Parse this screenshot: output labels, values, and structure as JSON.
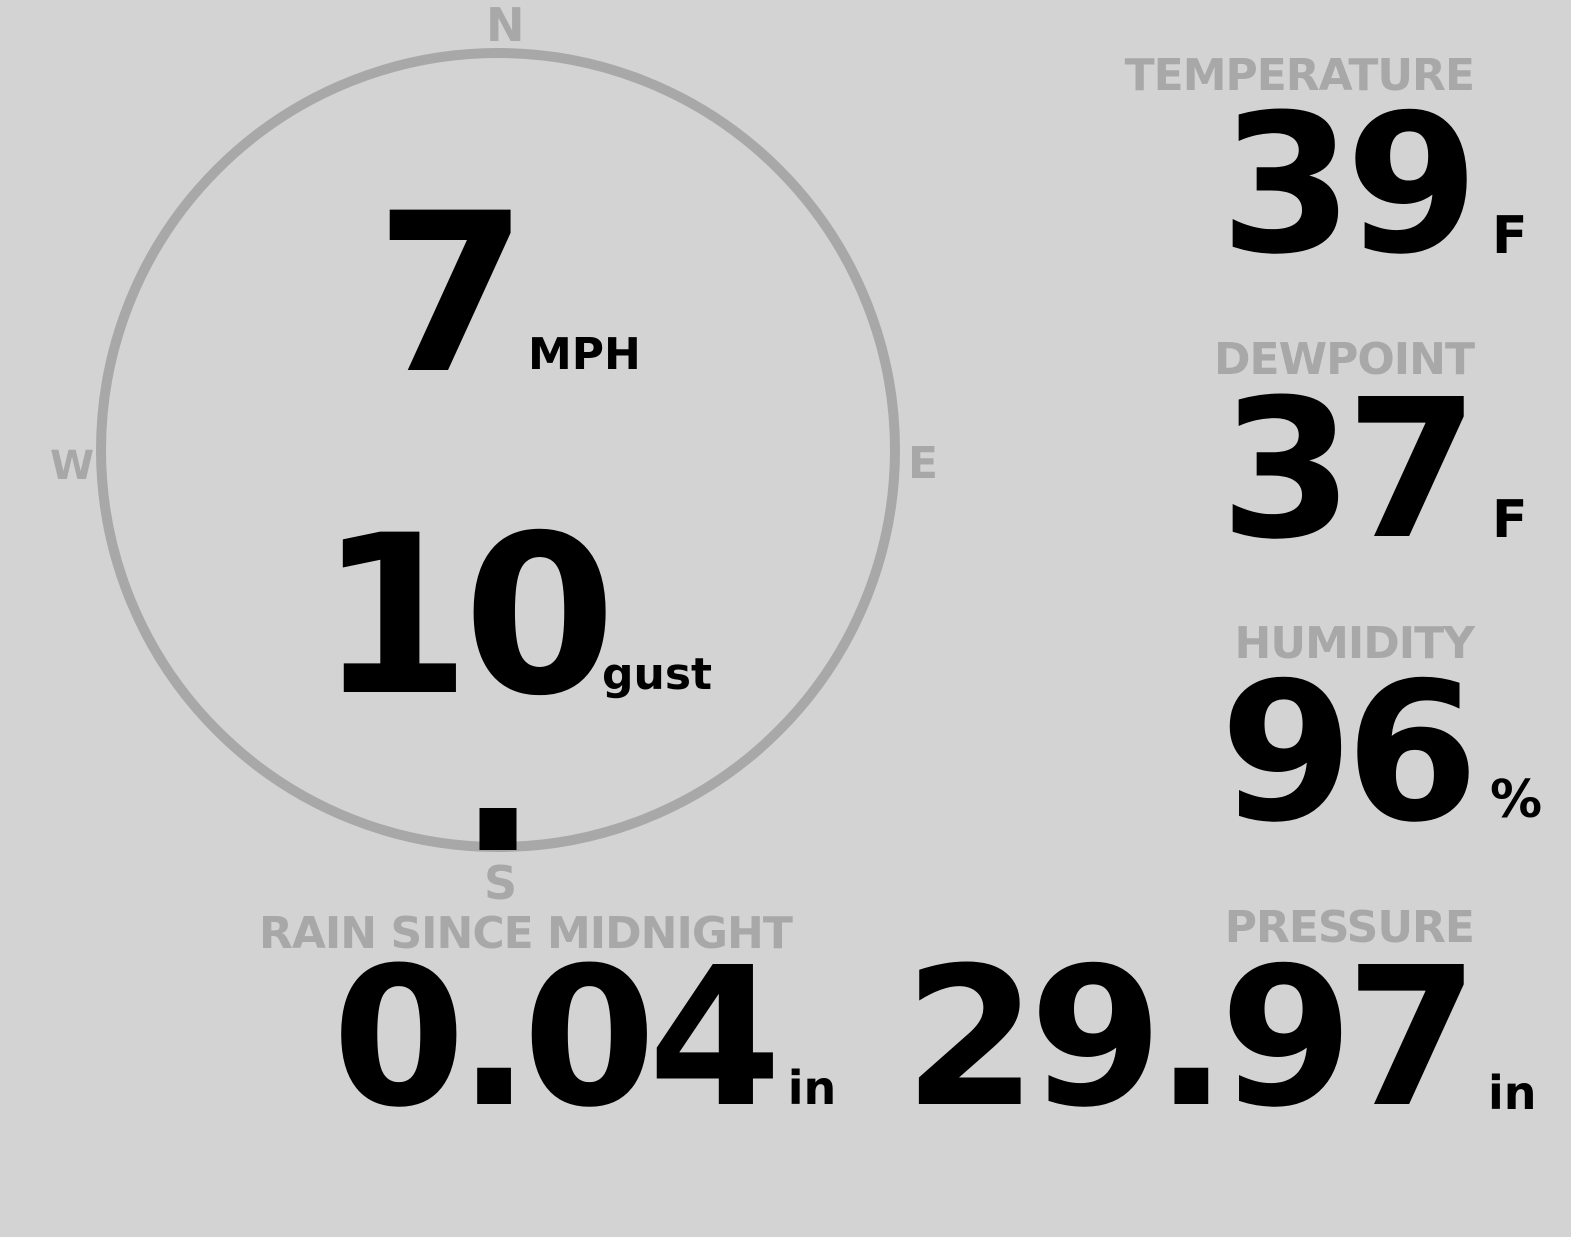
{
  "wind": {
    "speed": "7",
    "speed_unit": "MPH",
    "gust": "10",
    "gust_label": "gust",
    "direction_degrees": 180,
    "compass": {
      "n": "N",
      "e": "E",
      "s": "S",
      "w": "W"
    }
  },
  "temperature": {
    "label": "TEMPERATURE",
    "value": "39",
    "unit": "F"
  },
  "dewpoint": {
    "label": "DEWPOINT",
    "value": "37",
    "unit": "F"
  },
  "humidity": {
    "label": "HUMIDITY",
    "value": "96",
    "unit": "%"
  },
  "rain": {
    "label": "RAIN SINCE MIDNIGHT",
    "value": "0.04",
    "unit": "in"
  },
  "pressure": {
    "label": "PRESSURE",
    "value": "29.97",
    "unit": "in"
  },
  "colors": {
    "background": "#d3d3d3",
    "muted": "#a8a8a8",
    "text": "#000000"
  }
}
